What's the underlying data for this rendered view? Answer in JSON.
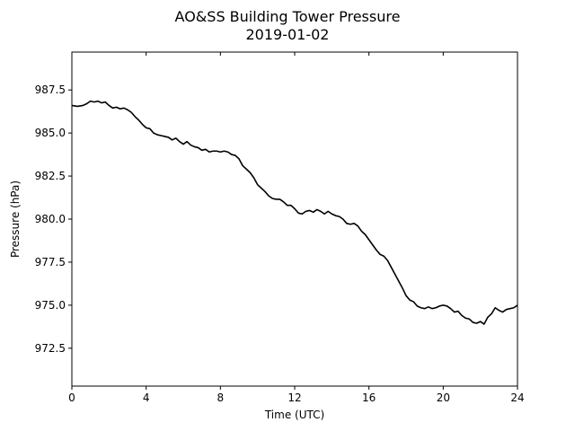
{
  "chart_data": {
    "type": "line",
    "title": "AO&SS Building Tower Pressure",
    "subtitle": "2019-01-02",
    "xlabel": "Time (UTC)",
    "ylabel": "Pressure (hPa)",
    "xlim": [
      0,
      24
    ],
    "ylim": [
      970.3,
      989.7
    ],
    "x_ticks": [
      0,
      4,
      8,
      12,
      16,
      20,
      24
    ],
    "x_tick_labels": [
      "0",
      "4",
      "8",
      "12",
      "16",
      "20",
      "24"
    ],
    "y_ticks": [
      972.5,
      975.0,
      977.5,
      980.0,
      982.5,
      985.0,
      987.5
    ],
    "y_tick_labels": [
      "972.5",
      "975.0",
      "977.5",
      "980.0",
      "982.5",
      "985.0",
      "987.5"
    ],
    "grid": false,
    "series": [
      {
        "color": "#000000",
        "x": [
          0.0,
          0.3,
          0.6,
          0.8,
          1.0,
          1.2,
          1.4,
          1.6,
          1.8,
          2.0,
          2.2,
          2.4,
          2.6,
          2.8,
          3.0,
          3.2,
          3.4,
          3.6,
          3.8,
          4.0,
          4.2,
          4.4,
          4.6,
          4.8,
          5.0,
          5.2,
          5.4,
          5.6,
          5.8,
          6.0,
          6.2,
          6.4,
          6.6,
          6.8,
          7.0,
          7.2,
          7.4,
          7.6,
          7.8,
          8.0,
          8.2,
          8.4,
          8.6,
          8.8,
          9.0,
          9.2,
          9.4,
          9.6,
          9.8,
          10.0,
          10.2,
          10.4,
          10.6,
          10.8,
          11.0,
          11.2,
          11.4,
          11.6,
          11.8,
          12.0,
          12.2,
          12.4,
          12.6,
          12.8,
          13.0,
          13.2,
          13.4,
          13.6,
          13.8,
          14.0,
          14.2,
          14.4,
          14.6,
          14.8,
          15.0,
          15.2,
          15.4,
          15.6,
          15.8,
          16.0,
          16.2,
          16.4,
          16.6,
          16.8,
          17.0,
          17.2,
          17.4,
          17.6,
          17.8,
          18.0,
          18.2,
          18.4,
          18.6,
          18.8,
          19.0,
          19.2,
          19.4,
          19.6,
          19.8,
          20.0,
          20.2,
          20.4,
          20.6,
          20.8,
          21.0,
          21.2,
          21.4,
          21.6,
          21.8,
          22.0,
          22.2,
          22.4,
          22.6,
          22.8,
          23.0,
          23.2,
          23.4,
          23.6,
          23.8,
          24.0
        ],
        "values": [
          986.6,
          986.55,
          986.6,
          986.7,
          986.85,
          986.8,
          986.85,
          986.75,
          986.8,
          986.6,
          986.45,
          986.5,
          986.4,
          986.45,
          986.35,
          986.2,
          985.95,
          985.75,
          985.5,
          985.3,
          985.25,
          985.0,
          984.9,
          984.85,
          984.8,
          984.75,
          984.6,
          984.7,
          984.5,
          984.35,
          984.5,
          984.3,
          984.2,
          984.15,
          984.0,
          984.05,
          983.9,
          983.95,
          983.95,
          983.9,
          983.95,
          983.9,
          983.75,
          983.7,
          983.5,
          983.1,
          982.9,
          982.7,
          982.4,
          982.0,
          981.8,
          981.6,
          981.35,
          981.2,
          981.15,
          981.15,
          981.0,
          980.8,
          980.8,
          980.6,
          980.35,
          980.3,
          980.45,
          980.5,
          980.4,
          980.55,
          980.45,
          980.3,
          980.45,
          980.3,
          980.2,
          980.15,
          980.0,
          979.75,
          979.7,
          979.75,
          979.6,
          979.3,
          979.1,
          978.8,
          978.5,
          978.2,
          977.95,
          977.85,
          977.6,
          977.2,
          976.8,
          976.4,
          976.0,
          975.55,
          975.3,
          975.2,
          974.95,
          974.85,
          974.8,
          974.9,
          974.8,
          974.85,
          974.95,
          975.0,
          974.95,
          974.8,
          974.6,
          974.65,
          974.4,
          974.25,
          974.2,
          974.0,
          973.95,
          974.05,
          973.9,
          974.3,
          974.5,
          974.85,
          974.7,
          974.6,
          974.75,
          974.8,
          974.85,
          975.0
        ]
      }
    ]
  }
}
